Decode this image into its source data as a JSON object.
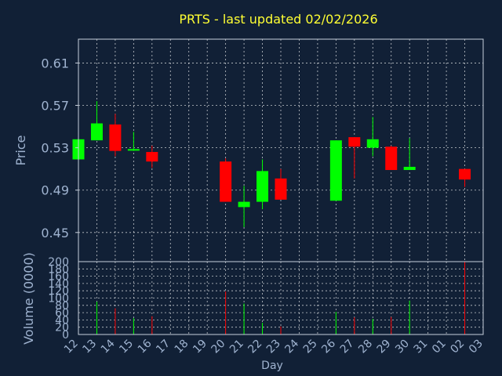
{
  "chart_data": {
    "type": "candlestick",
    "title": "PRTS - last updated 02/02/2026",
    "colors": {
      "background": "#112036",
      "title": "#ffff33",
      "axis_text": "#9fb3d0",
      "frame": "#c8d0dc",
      "grid": "#ffffff",
      "up": "#00ff00",
      "down": "#ff0000"
    },
    "grid": true,
    "days": [
      "12",
      "13",
      "14",
      "15",
      "16",
      "17",
      "18",
      "19",
      "20",
      "21",
      "22",
      "23",
      "24",
      "25",
      "26",
      "27",
      "28",
      "29",
      "30",
      "31",
      "01",
      "02",
      "03"
    ],
    "xlabel": "Day",
    "price_panel": {
      "ylabel": "Price",
      "ylim": [
        0.4225,
        0.6325
      ],
      "yticks": [
        "0.61",
        "0.57",
        "0.53",
        "0.49",
        "0.45"
      ],
      "ytick_values": [
        0.61,
        0.57,
        0.53,
        0.49,
        0.45
      ]
    },
    "volume_panel": {
      "ylabel": "Volume (0000)",
      "ylim": [
        0,
        200
      ],
      "yticks": [
        "200",
        "180",
        "160",
        "140",
        "120",
        "100",
        "80",
        "60",
        "40",
        "20",
        "0"
      ],
      "ytick_values": [
        200,
        180,
        160,
        140,
        120,
        100,
        80,
        60,
        40,
        20,
        0
      ]
    },
    "candles": [
      {
        "day": "12",
        "open": 0.519,
        "high": 0.538,
        "low": 0.519,
        "close": 0.538
      },
      {
        "day": "13",
        "open": 0.537,
        "high": 0.574,
        "low": 0.537,
        "close": 0.553
      },
      {
        "day": "14",
        "open": 0.552,
        "high": 0.562,
        "low": 0.522,
        "close": 0.527
      },
      {
        "day": "15",
        "open": 0.527,
        "high": 0.545,
        "low": 0.527,
        "close": 0.528
      },
      {
        "day": "16",
        "open": 0.526,
        "high": 0.532,
        "low": 0.511,
        "close": 0.517
      },
      {
        "day": "20",
        "open": 0.517,
        "high": 0.52,
        "low": 0.479,
        "close": 0.479
      },
      {
        "day": "21",
        "open": 0.474,
        "high": 0.494,
        "low": 0.455,
        "close": 0.479
      },
      {
        "day": "22",
        "open": 0.479,
        "high": 0.519,
        "low": 0.472,
        "close": 0.508
      },
      {
        "day": "23",
        "open": 0.501,
        "high": 0.51,
        "low": 0.481,
        "close": 0.481
      },
      {
        "day": "26",
        "open": 0.48,
        "high": 0.537,
        "low": 0.48,
        "close": 0.537
      },
      {
        "day": "27",
        "open": 0.54,
        "high": 0.54,
        "low": 0.501,
        "close": 0.531
      },
      {
        "day": "28",
        "open": 0.53,
        "high": 0.559,
        "low": 0.522,
        "close": 0.538
      },
      {
        "day": "29",
        "open": 0.531,
        "high": 0.532,
        "low": 0.509,
        "close": 0.509
      },
      {
        "day": "30",
        "open": 0.509,
        "high": 0.539,
        "low": 0.509,
        "close": 0.512
      },
      {
        "day": "02",
        "open": 0.51,
        "high": 0.51,
        "low": 0.493,
        "close": 0.5
      }
    ],
    "volume": [
      {
        "day": "13",
        "value": 90,
        "direction": "up"
      },
      {
        "day": "14",
        "value": 72,
        "direction": "down"
      },
      {
        "day": "15",
        "value": 45,
        "direction": "up"
      },
      {
        "day": "16",
        "value": 50,
        "direction": "down"
      },
      {
        "day": "20",
        "value": 118,
        "direction": "down"
      },
      {
        "day": "21",
        "value": 85,
        "direction": "up"
      },
      {
        "day": "22",
        "value": 32,
        "direction": "up"
      },
      {
        "day": "23",
        "value": 22,
        "direction": "down"
      },
      {
        "day": "26",
        "value": 62,
        "direction": "up"
      },
      {
        "day": "27",
        "value": 47,
        "direction": "down"
      },
      {
        "day": "28",
        "value": 43,
        "direction": "up"
      },
      {
        "day": "29",
        "value": 48,
        "direction": "down"
      },
      {
        "day": "30",
        "value": 93,
        "direction": "up"
      },
      {
        "day": "02",
        "value": 200,
        "direction": "down"
      }
    ]
  }
}
